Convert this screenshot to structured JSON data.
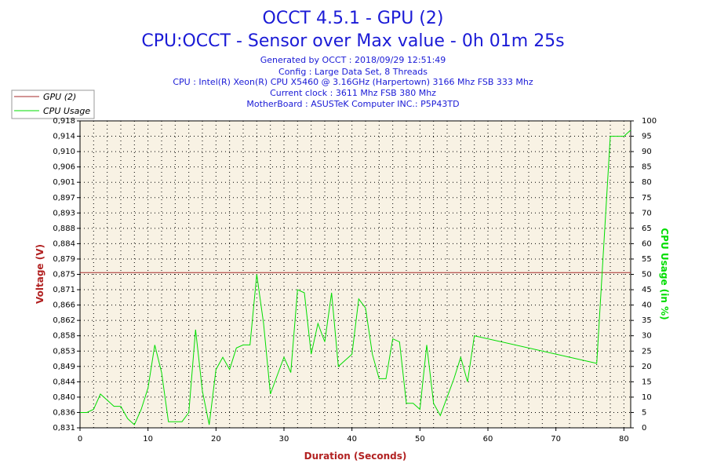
{
  "header": {
    "title": "OCCT 4.5.1 - GPU (2)",
    "subtitle": "CPU:OCCT - Sensor over Max value - 0h 01m 25s",
    "info_lines": [
      "Generated by OCCT : 2018/09/29 12:51:49",
      "Config : Large Data Set, 8 Threads",
      "CPU : Intel(R) Xeon(R) CPU X5460 @ 3.16GHz (Harpertown) 3166 Mhz FSB 333 Mhz",
      "Current clock : 3611 Mhz FSB 380 Mhz",
      "MotherBoard : ASUSTeK Computer INC.: P5P43TD"
    ]
  },
  "legend": {
    "items": [
      {
        "label": "GPU (2)",
        "color": "#a52a2a"
      },
      {
        "label": "CPU Usage",
        "color": "#00dd00"
      }
    ]
  },
  "chart_data": {
    "type": "line",
    "title": "OCCT 4.5.1 - GPU (2)",
    "xlabel": "Duration (Seconds)",
    "ylabel": "Voltage (V)",
    "y2label": "CPU Usage (in %)",
    "xlim": [
      0,
      81
    ],
    "ylim": [
      0.831,
      0.918
    ],
    "y2lim": [
      0,
      100
    ],
    "x_ticks": [
      0,
      10,
      20,
      30,
      40,
      50,
      60,
      70,
      80
    ],
    "y_ticks": [
      "0,831",
      "0,836",
      "0,840",
      "0,844",
      "0,849",
      "0,853",
      "0,858",
      "0,862",
      "0,866",
      "0,871",
      "0,875",
      "0,879",
      "0,884",
      "0,888",
      "0,893",
      "0,897",
      "0,901",
      "0,906",
      "0,910",
      "0,914",
      "0,918"
    ],
    "y2_ticks": [
      0,
      5,
      10,
      15,
      20,
      25,
      30,
      35,
      40,
      45,
      50,
      55,
      60,
      65,
      70,
      75,
      80,
      85,
      90,
      95,
      100
    ],
    "grid": true,
    "legend_position": "top-left",
    "series": [
      {
        "name": "GPU (2)",
        "axis": "left",
        "color": "#a52a2a",
        "x": [
          0,
          81
        ],
        "y": [
          0.875,
          0.875
        ]
      },
      {
        "name": "CPU Usage",
        "axis": "right",
        "color": "#00dd00",
        "x": [
          0,
          1,
          2,
          3,
          4,
          5,
          6,
          7,
          8,
          9,
          10,
          11,
          12,
          13,
          14,
          15,
          16,
          17,
          18,
          19,
          20,
          21,
          22,
          23,
          24,
          25,
          26,
          27,
          28,
          29,
          30,
          31,
          32,
          33,
          34,
          35,
          36,
          37,
          38,
          39,
          40,
          41,
          42,
          43,
          44,
          45,
          46,
          47,
          48,
          49,
          50,
          51,
          52,
          53,
          54,
          55,
          56,
          57,
          58,
          76,
          78,
          80,
          81
        ],
        "y": [
          5,
          5,
          6,
          11,
          9,
          7,
          7,
          3,
          1,
          6,
          13,
          27,
          18,
          2,
          2,
          2,
          5,
          32,
          12,
          1,
          19,
          23,
          19,
          26,
          27,
          27,
          50,
          34,
          11,
          17,
          23,
          18,
          45,
          44,
          24,
          34,
          28,
          44,
          20,
          22,
          24,
          42,
          39,
          24,
          16,
          16,
          29,
          28,
          8,
          8,
          6,
          27,
          8,
          4,
          10,
          16,
          23,
          15,
          30,
          21,
          95,
          95,
          97
        ]
      }
    ]
  }
}
